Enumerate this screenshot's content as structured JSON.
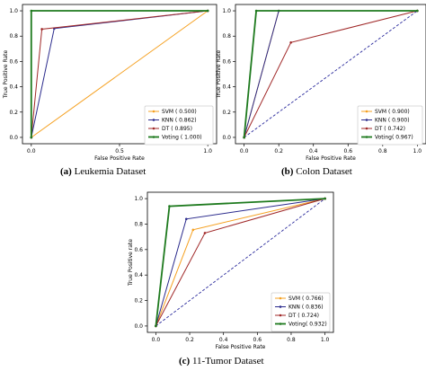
{
  "chart_data": [
    {
      "type": "line",
      "panel": "a",
      "xlabel": "False Positive Rate",
      "ylabel": "True Positive Rate",
      "xlim": [
        -0.05,
        1.05
      ],
      "ylim": [
        -0.05,
        1.05
      ],
      "xticks": [
        "0.0",
        "0.5",
        "1.0"
      ],
      "yticks": [
        "0.0",
        "0.2",
        "0.4",
        "0.6",
        "0.8",
        "1.0"
      ],
      "grid": false,
      "legend_position": "bottom-right",
      "diagonal": false,
      "caption_letter": "(a)",
      "caption_text": " Leukemia Dataset",
      "series": [
        {
          "name": "SVM  ( 0.500)",
          "color": "#f5a020",
          "x": [
            0,
            1
          ],
          "y": [
            0,
            1
          ]
        },
        {
          "name": "KNN  ( 0.862)",
          "color": "#2a2a8c",
          "x": [
            0,
            0.13,
            1
          ],
          "y": [
            0,
            0.86,
            1
          ]
        },
        {
          "name": "DT  ( 0.895)",
          "color": "#a02828",
          "x": [
            0,
            0.06,
            1
          ],
          "y": [
            0,
            0.855,
            1
          ]
        },
        {
          "name": "Voting  ( 1.000)",
          "color": "#1e7a1e",
          "x": [
            0,
            0,
            1
          ],
          "y": [
            0,
            1,
            1
          ]
        }
      ]
    },
    {
      "type": "line",
      "panel": "b",
      "xlabel": "False Positive Rate",
      "ylabel": "True Positive Rate",
      "xlim": [
        -0.05,
        1.05
      ],
      "ylim": [
        -0.05,
        1.05
      ],
      "xticks": [
        "0.0",
        "0.2",
        "0.4",
        "0.6",
        "0.8",
        "1.0"
      ],
      "yticks": [
        "0.0",
        "0.2",
        "0.4",
        "0.6",
        "0.8",
        "1.0"
      ],
      "grid": false,
      "legend_position": "bottom-right",
      "diagonal": true,
      "caption_letter": "(b)",
      "caption_text": " Colon Dataset",
      "series": [
        {
          "name": "SVM  ( 0.900)",
          "color": "#f5a020",
          "x": [
            0,
            0.2,
            1
          ],
          "y": [
            0,
            1,
            1
          ]
        },
        {
          "name": "KNN  ( 0.900)",
          "color": "#2a2a8c",
          "x": [
            0,
            0.2,
            1
          ],
          "y": [
            0,
            1,
            1
          ]
        },
        {
          "name": "DT  ( 0.742)",
          "color": "#a02828",
          "x": [
            0,
            0.27,
            1
          ],
          "y": [
            0,
            0.75,
            1
          ]
        },
        {
          "name": "Voting( 0.967)",
          "color": "#1e7a1e",
          "x": [
            0,
            0.07,
            1
          ],
          "y": [
            0,
            1,
            1
          ]
        }
      ]
    },
    {
      "type": "line",
      "panel": "c",
      "xlabel": "False Positive Rate",
      "ylabel": "True Positive rate",
      "xlim": [
        -0.05,
        1.05
      ],
      "ylim": [
        -0.05,
        1.05
      ],
      "xticks": [
        "0.0",
        "0.2",
        "0.4",
        "0.6",
        "0.8",
        "1.0"
      ],
      "yticks": [
        "0.0",
        "0.2",
        "0.4",
        "0.6",
        "0.8",
        "1.0"
      ],
      "grid": false,
      "legend_position": "bottom-right",
      "diagonal": true,
      "caption_letter": "(c)",
      "caption_text": " 11-Tumor Dataset",
      "series": [
        {
          "name": "SVM  ( 0.766)",
          "color": "#f5a020",
          "x": [
            0,
            0.22,
            1
          ],
          "y": [
            0,
            0.755,
            1
          ]
        },
        {
          "name": "KNN  ( 0.836)",
          "color": "#2a2a8c",
          "x": [
            0,
            0.18,
            1
          ],
          "y": [
            0,
            0.84,
            1
          ]
        },
        {
          "name": "DT  ( 0.724)",
          "color": "#a02828",
          "x": [
            0,
            0.29,
            1
          ],
          "y": [
            0,
            0.73,
            1
          ]
        },
        {
          "name": "Voting( 0.932)",
          "color": "#1e7a1e",
          "x": [
            0,
            0.08,
            1
          ],
          "y": [
            0,
            0.94,
            1
          ]
        }
      ]
    }
  ]
}
